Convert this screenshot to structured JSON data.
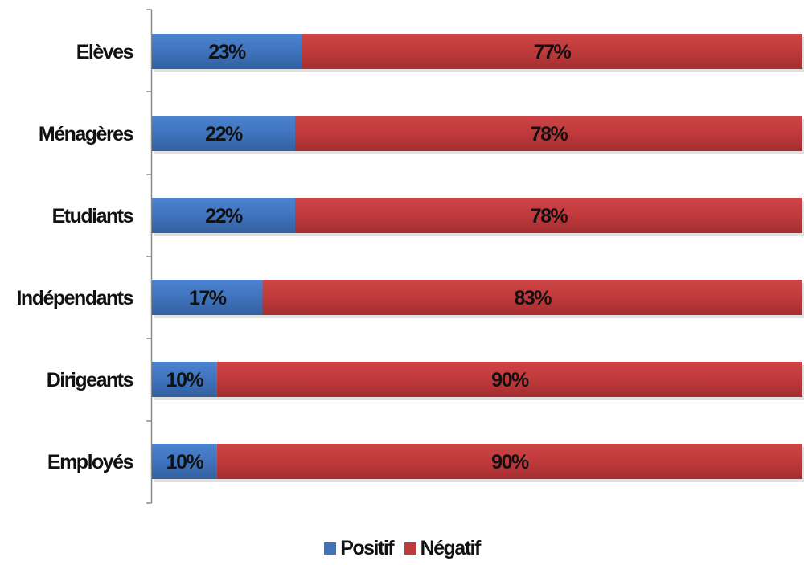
{
  "chart_data": {
    "type": "bar",
    "orientation": "horizontal",
    "stacked": true,
    "percent": true,
    "categories": [
      "Elèves",
      "Ménagères",
      "Etudiants",
      "Indépendants",
      "Dirigeants",
      "Employés"
    ],
    "series": [
      {
        "name": "Positif",
        "color": "#3F73BE",
        "values": [
          23,
          22,
          22,
          17,
          10,
          10
        ],
        "labels": [
          "23%",
          "22%",
          "22%",
          "17%",
          "10%",
          "10%"
        ]
      },
      {
        "name": "Négatif",
        "color": "#C0393B",
        "values": [
          77,
          78,
          78,
          83,
          90,
          90
        ],
        "labels": [
          "77%",
          "78%",
          "78%",
          "83%",
          "90%",
          "90%"
        ]
      }
    ],
    "xlim": [
      0,
      100
    ],
    "grid": false,
    "legend_position": "bottom"
  }
}
